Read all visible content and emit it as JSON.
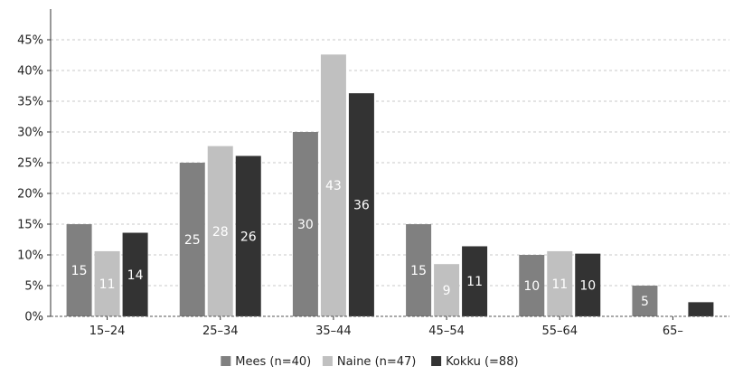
{
  "chart_data": {
    "type": "bar",
    "title": "",
    "xlabel": "",
    "ylabel": "",
    "categories": [
      "15-24",
      "25-34",
      "35-44",
      "45-54",
      "55-64",
      "65-"
    ],
    "ylim": [
      0,
      0.5
    ],
    "yticks": [
      {
        "value": 0,
        "label": "0%"
      },
      {
        "value": 0.05,
        "label": "5%"
      },
      {
        "value": 0.1,
        "label": "10%"
      },
      {
        "value": 0.15,
        "label": "15%"
      },
      {
        "value": 0.2,
        "label": "20%"
      },
      {
        "value": 0.25,
        "label": "25%"
      },
      {
        "value": 0.3,
        "label": "30%"
      },
      {
        "value": 0.35,
        "label": "35%"
      },
      {
        "value": 0.4,
        "label": "40%"
      },
      {
        "value": 0.45,
        "label": "45%"
      }
    ],
    "grid": true,
    "legend_position": "bottom",
    "series": [
      {
        "name": "Mees (n=40)",
        "color": "#808080",
        "values": [
          0.15,
          0.25,
          0.3,
          0.15,
          0.1,
          0.05
        ],
        "labels": [
          "15",
          "25",
          "30",
          "15",
          "10",
          "5"
        ]
      },
      {
        "name": "Naine (n=47)",
        "color": "#c0c0c0",
        "values": [
          0.106,
          0.277,
          0.426,
          0.085,
          0.106,
          0
        ],
        "labels": [
          "11",
          "28",
          "43",
          "9",
          "11",
          ""
        ]
      },
      {
        "name": "Kokku (=88)",
        "color": "#333333",
        "values": [
          0.136,
          0.261,
          0.363,
          0.114,
          0.102,
          0.023
        ],
        "labels": [
          "14",
          "26",
          "36",
          "11",
          "10",
          ""
        ]
      }
    ]
  }
}
